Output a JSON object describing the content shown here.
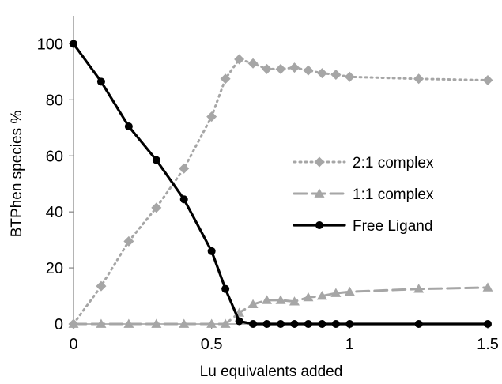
{
  "chart_data": {
    "type": "line",
    "title": "",
    "xlabel": "Lu equivalents added",
    "ylabel": "BTPhen species %",
    "xlim": [
      0,
      1.5
    ],
    "ylim": [
      0,
      110
    ],
    "x_ticks": [
      "0",
      "0.5",
      "1",
      "1.5"
    ],
    "x_tick_values": [
      0,
      0.5,
      1,
      1.5
    ],
    "y_ticks": [
      "0",
      "20",
      "40",
      "60",
      "80",
      "100"
    ],
    "y_tick_values": [
      0,
      20,
      40,
      60,
      80,
      100
    ],
    "grid": false,
    "legend_position": "right",
    "series": [
      {
        "name": "2:1 complex",
        "style": "dotted",
        "marker": "diamond",
        "color": "#a6a6a6",
        "x": [
          0,
          0.1,
          0.2,
          0.3,
          0.4,
          0.5,
          0.55,
          0.6,
          0.65,
          0.7,
          0.75,
          0.8,
          0.85,
          0.9,
          0.95,
          1.0,
          1.25,
          1.5
        ],
        "y": [
          0,
          13.5,
          29.5,
          41.5,
          55.5,
          74,
          87.5,
          94.5,
          93,
          91,
          91,
          91.5,
          90.5,
          89.5,
          89,
          88.2,
          87.5,
          87
        ]
      },
      {
        "name": "1:1 complex",
        "style": "dashed",
        "marker": "triangle",
        "color": "#a6a6a6",
        "x": [
          0,
          0.1,
          0.2,
          0.3,
          0.4,
          0.5,
          0.55,
          0.6,
          0.65,
          0.7,
          0.75,
          0.8,
          0.85,
          0.9,
          0.95,
          1.0,
          1.25,
          1.5
        ],
        "y": [
          0,
          0,
          0,
          0,
          0,
          0,
          0,
          4,
          7,
          8.5,
          8.5,
          8,
          9.5,
          10,
          11,
          11.5,
          12.5,
          13
        ]
      },
      {
        "name": "Free Ligand",
        "style": "solid",
        "marker": "circle",
        "color": "#000000",
        "x": [
          0,
          0.1,
          0.2,
          0.3,
          0.4,
          0.5,
          0.55,
          0.6,
          0.65,
          0.7,
          0.75,
          0.8,
          0.85,
          0.9,
          0.95,
          1.0,
          1.25,
          1.5
        ],
        "y": [
          100,
          86.5,
          70.5,
          58.5,
          44.5,
          26,
          12.5,
          1,
          0,
          0,
          0,
          0,
          0,
          0,
          0,
          0,
          0,
          0
        ]
      }
    ]
  }
}
